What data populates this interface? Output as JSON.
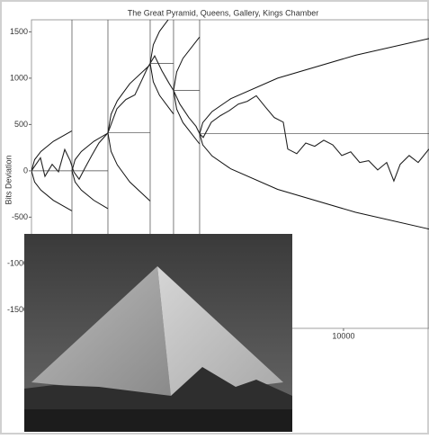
{
  "chart_data": {
    "type": "line",
    "title": "The Great Pyramid, Queens, Gallery, Kings Chamber",
    "ylabel": "Bits Deviation",
    "x": [
      0,
      288,
      432,
      663,
      865,
      1066,
      1239,
      1354,
      1527,
      1729,
      1931,
      2161,
      2450,
      2738,
      3026,
      3314,
      3545,
      3718,
      3804,
      3948,
      4179,
      4409,
      4553,
      4755,
      5043,
      5274,
      5389,
      5504,
      5764,
      6052,
      6340,
      6629,
      6917,
      7205,
      7493,
      7781,
      8070,
      8214,
      8502,
      8790,
      9078,
      9367,
      9655,
      9943,
      10231,
      10519,
      10807,
      11096,
      11384,
      11614,
      11816,
      12104,
      12393,
      12738
    ],
    "series": [
      {
        "color": "#222222",
        "values": [
          0,
          140,
          -60,
          70,
          -10,
          230,
          110,
          -10,
          -90,
          40,
          165,
          300,
          410,
          670,
          770,
          820,
          985,
          1110,
          1160,
          1240,
          1080,
          945,
          867,
          720,
          575,
          480,
          400,
          360,
          525,
          595,
          650,
          720,
          750,
          810,
          690,
          575,
          525,
          235,
          185,
          300,
          265,
          330,
          280,
          165,
          205,
          90,
          110,
          10,
          90,
          -110,
          70,
          165,
          90,
          235
        ]
      }
    ],
    "envelopes": [
      {
        "x": [
          0,
          100,
          300,
          700,
          1297
        ],
        "upper": [
          0,
          120,
          208,
          318,
          432
        ],
        "lower": [
          0,
          -120,
          -208,
          -318,
          -432
        ]
      },
      {
        "x": [
          1297,
          1397,
          1597,
          1997,
          2450
        ],
        "upper": [
          0,
          120,
          208,
          318,
          408
        ],
        "lower": [
          0,
          -120,
          -208,
          -318,
          -408
        ]
      },
      {
        "x": [
          2450,
          2550,
          2750,
          3150,
          3804
        ],
        "upper": [
          410,
          610,
          756,
          940,
          1146
        ],
        "lower": [
          410,
          210,
          64,
          -120,
          -326
        ]
      },
      {
        "x": [
          3804,
          3904,
          4104,
          4553
        ],
        "upper": [
          1160,
          1360,
          1506,
          1708
        ],
        "lower": [
          1160,
          960,
          814,
          612
        ]
      },
      {
        "x": [
          4553,
          4653,
          4853,
          5389
        ],
        "upper": [
          867,
          1067,
          1213,
          1445
        ],
        "lower": [
          867,
          667,
          521,
          289
        ]
      },
      {
        "x": [
          5389,
          5489,
          5789,
          6389,
          7889,
          10389,
          12740
        ],
        "upper": [
          400,
          520,
          640,
          779,
          1000,
          1248,
          1428
        ],
        "lower": [
          400,
          280,
          160,
          21,
          -200,
          -448,
          -628
        ]
      }
    ],
    "envelope_color": "#111111",
    "xlim": [
      0,
      12740
    ],
    "ylim": [
      -1700,
      1630
    ],
    "xticks": [
      10000
    ],
    "yticks": [
      1500,
      1000,
      500,
      0,
      -500,
      -1000,
      -1500
    ]
  }
}
